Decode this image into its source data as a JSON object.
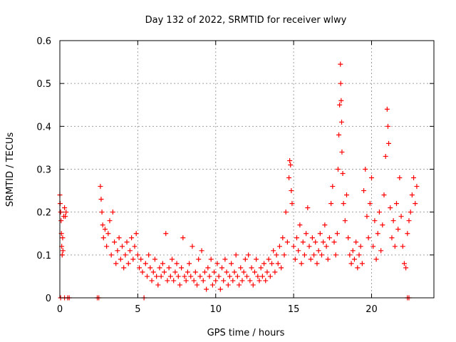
{
  "chart_data": {
    "type": "scatter",
    "title": "Day 132 of 2022, SRMTID for receiver wlwy",
    "xlabel": "GPS time / hours",
    "ylabel": "SRMTID / TECUs",
    "xlim": [
      0,
      24
    ],
    "ylim": [
      0,
      0.6
    ],
    "x_ticks": [
      0,
      5,
      10,
      15,
      20
    ],
    "y_ticks": [
      0,
      0.1,
      0.2,
      0.3,
      0.4,
      0.5,
      0.6
    ],
    "x_tick_labels": [
      "0",
      "5",
      "10",
      "15",
      "20"
    ],
    "y_tick_labels": [
      "0",
      "0.1",
      "0.2",
      "0.3",
      "0.4",
      "0.5",
      "0.6"
    ],
    "grid": true,
    "marker": "+",
    "color": "#ff0000",
    "series": [
      {
        "name": "SRMTID",
        "points": [
          [
            0.0,
            0.24
          ],
          [
            0.02,
            0.22
          ],
          [
            0.05,
            0.2
          ],
          [
            0.08,
            0.18
          ],
          [
            0.1,
            0.15
          ],
          [
            0.12,
            0.12
          ],
          [
            0.15,
            0.1
          ],
          [
            0.18,
            0.14
          ],
          [
            0.2,
            0.11
          ],
          [
            0.25,
            0.19
          ],
          [
            0.3,
            0.21
          ],
          [
            0.35,
            0.19
          ],
          [
            0.4,
            0.2
          ],
          [
            0.05,
            0.0
          ],
          [
            0.3,
            0.0
          ],
          [
            0.5,
            0.0
          ],
          [
            0.6,
            0.0
          ],
          [
            2.4,
            0.0
          ],
          [
            2.5,
            0.0
          ],
          [
            5.4,
            0.0
          ],
          [
            22.3,
            0.0
          ],
          [
            22.4,
            0.0
          ],
          [
            2.6,
            0.26
          ],
          [
            2.65,
            0.23
          ],
          [
            2.7,
            0.2
          ],
          [
            2.75,
            0.17
          ],
          [
            2.8,
            0.14
          ],
          [
            2.9,
            0.16
          ],
          [
            3.0,
            0.12
          ],
          [
            3.1,
            0.15
          ],
          [
            3.2,
            0.18
          ],
          [
            3.3,
            0.1
          ],
          [
            3.4,
            0.2
          ],
          [
            3.5,
            0.13
          ],
          [
            3.6,
            0.08
          ],
          [
            3.7,
            0.11
          ],
          [
            3.8,
            0.14
          ],
          [
            3.9,
            0.09
          ],
          [
            4.0,
            0.12
          ],
          [
            4.1,
            0.07
          ],
          [
            4.2,
            0.1
          ],
          [
            4.3,
            0.13
          ],
          [
            4.4,
            0.08
          ],
          [
            4.5,
            0.11
          ],
          [
            4.6,
            0.14
          ],
          [
            4.7,
            0.09
          ],
          [
            4.8,
            0.12
          ],
          [
            4.9,
            0.15
          ],
          [
            5.0,
            0.1
          ],
          [
            5.1,
            0.07
          ],
          [
            5.2,
            0.09
          ],
          [
            5.3,
            0.06
          ],
          [
            5.5,
            0.08
          ],
          [
            5.6,
            0.05
          ],
          [
            5.7,
            0.1
          ],
          [
            5.8,
            0.07
          ],
          [
            5.9,
            0.04
          ],
          [
            6.0,
            0.06
          ],
          [
            6.1,
            0.09
          ],
          [
            6.2,
            0.05
          ],
          [
            6.3,
            0.03
          ],
          [
            6.4,
            0.07
          ],
          [
            6.5,
            0.05
          ],
          [
            6.6,
            0.08
          ],
          [
            6.7,
            0.06
          ],
          [
            6.8,
            0.15
          ],
          [
            6.9,
            0.04
          ],
          [
            7.0,
            0.07
          ],
          [
            7.1,
            0.05
          ],
          [
            7.2,
            0.09
          ],
          [
            7.3,
            0.04
          ],
          [
            7.4,
            0.06
          ],
          [
            7.5,
            0.08
          ],
          [
            7.6,
            0.05
          ],
          [
            7.7,
            0.03
          ],
          [
            7.8,
            0.07
          ],
          [
            7.9,
            0.14
          ],
          [
            8.0,
            0.05
          ],
          [
            8.1,
            0.04
          ],
          [
            8.2,
            0.06
          ],
          [
            8.3,
            0.08
          ],
          [
            8.4,
            0.05
          ],
          [
            8.5,
            0.12
          ],
          [
            8.6,
            0.04
          ],
          [
            8.7,
            0.06
          ],
          [
            8.8,
            0.03
          ],
          [
            8.9,
            0.09
          ],
          [
            9.0,
            0.05
          ],
          [
            9.1,
            0.11
          ],
          [
            9.2,
            0.04
          ],
          [
            9.3,
            0.06
          ],
          [
            9.4,
            0.02
          ],
          [
            9.5,
            0.07
          ],
          [
            9.6,
            0.05
          ],
          [
            9.7,
            0.09
          ],
          [
            9.8,
            0.03
          ],
          [
            9.9,
            0.06
          ],
          [
            10.0,
            0.04
          ],
          [
            10.1,
            0.08
          ],
          [
            10.2,
            0.05
          ],
          [
            10.3,
            0.02
          ],
          [
            10.4,
            0.07
          ],
          [
            10.5,
            0.04
          ],
          [
            10.6,
            0.09
          ],
          [
            10.7,
            0.06
          ],
          [
            10.8,
            0.03
          ],
          [
            10.9,
            0.05
          ],
          [
            11.0,
            0.08
          ],
          [
            11.1,
            0.04
          ],
          [
            11.2,
            0.06
          ],
          [
            11.3,
            0.1
          ],
          [
            11.4,
            0.05
          ],
          [
            11.5,
            0.03
          ],
          [
            11.6,
            0.07
          ],
          [
            11.7,
            0.04
          ],
          [
            11.8,
            0.06
          ],
          [
            11.9,
            0.09
          ],
          [
            12.0,
            0.05
          ],
          [
            12.1,
            0.1
          ],
          [
            12.2,
            0.04
          ],
          [
            12.3,
            0.07
          ],
          [
            12.4,
            0.03
          ],
          [
            12.5,
            0.06
          ],
          [
            12.6,
            0.09
          ],
          [
            12.7,
            0.05
          ],
          [
            12.8,
            0.04
          ],
          [
            12.9,
            0.07
          ],
          [
            13.0,
            0.05
          ],
          [
            13.1,
            0.08
          ],
          [
            13.2,
            0.04
          ],
          [
            13.3,
            0.06
          ],
          [
            13.4,
            0.09
          ],
          [
            13.5,
            0.05
          ],
          [
            13.6,
            0.08
          ],
          [
            13.7,
            0.11
          ],
          [
            13.8,
            0.06
          ],
          [
            13.9,
            0.1
          ],
          [
            14.0,
            0.08
          ],
          [
            14.1,
            0.12
          ],
          [
            14.2,
            0.07
          ],
          [
            14.3,
            0.14
          ],
          [
            14.4,
            0.1
          ],
          [
            14.5,
            0.2
          ],
          [
            14.6,
            0.13
          ],
          [
            14.7,
            0.28
          ],
          [
            14.75,
            0.32
          ],
          [
            14.8,
            0.31
          ],
          [
            14.85,
            0.25
          ],
          [
            14.9,
            0.22
          ],
          [
            15.0,
            0.12
          ],
          [
            15.1,
            0.09
          ],
          [
            15.2,
            0.14
          ],
          [
            15.3,
            0.11
          ],
          [
            15.4,
            0.17
          ],
          [
            15.5,
            0.08
          ],
          [
            15.6,
            0.13
          ],
          [
            15.7,
            0.1
          ],
          [
            15.8,
            0.15
          ],
          [
            15.9,
            0.21
          ],
          [
            16.0,
            0.12
          ],
          [
            16.1,
            0.09
          ],
          [
            16.2,
            0.14
          ],
          [
            16.3,
            0.1
          ],
          [
            16.4,
            0.13
          ],
          [
            16.5,
            0.08
          ],
          [
            16.6,
            0.11
          ],
          [
            16.7,
            0.15
          ],
          [
            16.8,
            0.1
          ],
          [
            16.9,
            0.13
          ],
          [
            17.0,
            0.17
          ],
          [
            17.1,
            0.12
          ],
          [
            17.2,
            0.09
          ],
          [
            17.3,
            0.14
          ],
          [
            17.4,
            0.22
          ],
          [
            17.5,
            0.26
          ],
          [
            17.6,
            0.13
          ],
          [
            17.7,
            0.1
          ],
          [
            17.8,
            0.15
          ],
          [
            17.85,
            0.3
          ],
          [
            17.9,
            0.38
          ],
          [
            17.95,
            0.45
          ],
          [
            18.0,
            0.545
          ],
          [
            18.02,
            0.5
          ],
          [
            18.05,
            0.46
          ],
          [
            18.08,
            0.41
          ],
          [
            18.1,
            0.34
          ],
          [
            18.15,
            0.29
          ],
          [
            18.2,
            0.22
          ],
          [
            18.3,
            0.18
          ],
          [
            18.4,
            0.24
          ],
          [
            18.5,
            0.14
          ],
          [
            18.6,
            0.1
          ],
          [
            18.7,
            0.08
          ],
          [
            18.8,
            0.11
          ],
          [
            18.9,
            0.09
          ],
          [
            19.0,
            0.13
          ],
          [
            19.1,
            0.07
          ],
          [
            19.2,
            0.1
          ],
          [
            19.3,
            0.12
          ],
          [
            19.4,
            0.08
          ],
          [
            19.5,
            0.25
          ],
          [
            19.6,
            0.3
          ],
          [
            19.7,
            0.19
          ],
          [
            19.8,
            0.14
          ],
          [
            19.9,
            0.22
          ],
          [
            20.0,
            0.28
          ],
          [
            20.1,
            0.12
          ],
          [
            20.2,
            0.18
          ],
          [
            20.3,
            0.09
          ],
          [
            20.4,
            0.15
          ],
          [
            20.5,
            0.2
          ],
          [
            20.6,
            0.11
          ],
          [
            20.7,
            0.17
          ],
          [
            20.8,
            0.24
          ],
          [
            20.9,
            0.33
          ],
          [
            21.0,
            0.44
          ],
          [
            21.05,
            0.4
          ],
          [
            21.1,
            0.36
          ],
          [
            21.2,
            0.21
          ],
          [
            21.3,
            0.14
          ],
          [
            21.4,
            0.18
          ],
          [
            21.5,
            0.12
          ],
          [
            21.6,
            0.22
          ],
          [
            21.7,
            0.16
          ],
          [
            21.8,
            0.28
          ],
          [
            21.9,
            0.19
          ],
          [
            22.0,
            0.12
          ],
          [
            22.1,
            0.08
          ],
          [
            22.2,
            0.07
          ],
          [
            22.3,
            0.15
          ],
          [
            22.4,
            0.18
          ],
          [
            22.5,
            0.2
          ],
          [
            22.6,
            0.24
          ],
          [
            22.7,
            0.28
          ],
          [
            22.8,
            0.22
          ],
          [
            22.9,
            0.26
          ]
        ]
      }
    ]
  }
}
